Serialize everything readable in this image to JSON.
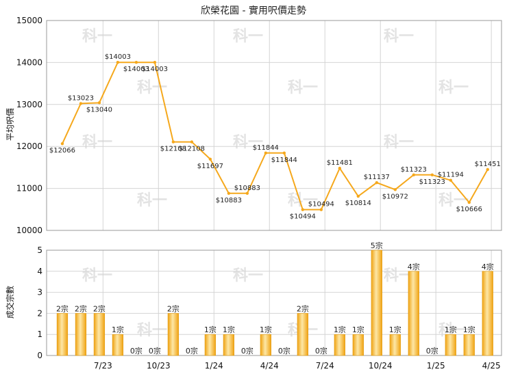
{
  "chart_data": [
    {
      "type": "line",
      "title": "欣榮花園 - 實用呎價走勢",
      "ylabel": "平均呎價",
      "ylim": [
        10000,
        15000
      ],
      "yticks": [
        10000,
        11000,
        12000,
        13000,
        14000,
        15000
      ],
      "xticks": [
        "7/23",
        "10/23",
        "1/24",
        "4/24",
        "7/24",
        "10/24",
        "1/25",
        "4/25"
      ],
      "color": "#f5a81c",
      "points": [
        {
          "i": 0,
          "value": 12066,
          "label": "$12066"
        },
        {
          "i": 1,
          "value": 13023,
          "label": "$13023"
        },
        {
          "i": 2,
          "value": 13040,
          "label": "$13040"
        },
        {
          "i": 3,
          "value": 14003,
          "label": "$14003"
        },
        {
          "i": 4,
          "value": 14003,
          "label": "$14003"
        },
        {
          "i": 5,
          "value": 14003,
          "label": "$14003"
        },
        {
          "i": 6,
          "value": 12108,
          "label": "$12108"
        },
        {
          "i": 7,
          "value": 12108,
          "label": "$12108"
        },
        {
          "i": 8,
          "value": 11697,
          "label": "$11697"
        },
        {
          "i": 9,
          "value": 10883,
          "label": "$10883"
        },
        {
          "i": 10,
          "value": 10883,
          "label": "$10883"
        },
        {
          "i": 11,
          "value": 11844,
          "label": "$11844"
        },
        {
          "i": 12,
          "value": 11844,
          "label": "$11844"
        },
        {
          "i": 13,
          "value": 10494,
          "label": "$10494"
        },
        {
          "i": 14,
          "value": 10494,
          "label": "$10494"
        },
        {
          "i": 15,
          "value": 11481,
          "label": "$11481"
        },
        {
          "i": 16,
          "value": 10814,
          "label": "$10814"
        },
        {
          "i": 17,
          "value": 11137,
          "label": "$11137"
        },
        {
          "i": 18,
          "value": 10972,
          "label": "$10972"
        },
        {
          "i": 19,
          "value": 11323,
          "label": "$11323"
        },
        {
          "i": 20,
          "value": 11323,
          "label": "$11323"
        },
        {
          "i": 21,
          "value": 11194,
          "label": "$11194"
        },
        {
          "i": 22,
          "value": 10666,
          "label": "$10666"
        },
        {
          "i": 23,
          "value": 11451,
          "label": "$11451"
        }
      ]
    },
    {
      "type": "bar",
      "ylabel": "成交宗數",
      "ylim": [
        0,
        5
      ],
      "yticks": [
        0,
        1,
        2,
        3,
        4,
        5
      ],
      "xticks": [
        "7/23",
        "10/23",
        "1/24",
        "4/24",
        "7/24",
        "10/24",
        "1/25",
        "4/25"
      ],
      "unit": "宗",
      "values": [
        2,
        2,
        2,
        1,
        0,
        0,
        2,
        0,
        1,
        1,
        0,
        1,
        0,
        2,
        0,
        1,
        1,
        5,
        1,
        4,
        0,
        1,
        1,
        4
      ]
    }
  ],
  "watermark": "科一"
}
